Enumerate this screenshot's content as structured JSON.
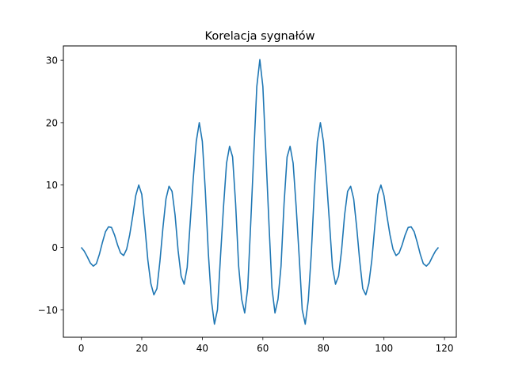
{
  "chart_data": {
    "type": "line",
    "title": "Korelacja sygnałów",
    "xlabel": "",
    "ylabel": "",
    "xlim": [
      -5.9,
      123.9
    ],
    "ylim": [
      -14.4,
      32.3
    ],
    "grid": false,
    "legend": "none",
    "x_ticks": [
      0,
      20,
      40,
      60,
      80,
      100,
      120
    ],
    "y_ticks": [
      -10,
      0,
      10,
      20,
      30
    ],
    "colors": {
      "line": "#1f77b4",
      "axes": "#000000",
      "background": "#ffffff"
    },
    "series": [
      {
        "x": [
          0,
          1,
          2,
          3,
          4,
          5,
          6,
          7,
          8,
          9,
          10,
          11,
          12,
          13,
          14,
          15,
          16,
          17,
          18,
          19,
          20,
          21,
          22,
          23,
          24,
          25,
          26,
          27,
          28,
          29,
          30,
          31,
          32,
          33,
          34,
          35,
          36,
          37,
          38,
          39,
          40,
          41,
          42,
          43,
          44,
          45,
          46,
          47,
          48,
          49,
          50,
          51,
          52,
          53,
          54,
          55,
          56,
          57,
          58,
          59,
          60,
          61,
          62,
          63,
          64,
          65,
          66,
          67,
          68,
          69,
          70,
          71,
          72,
          73,
          74,
          75,
          76,
          77,
          78,
          79,
          80,
          81,
          82,
          83,
          84,
          85,
          86,
          87,
          88,
          89,
          90,
          91,
          92,
          93,
          94,
          95,
          96,
          97,
          98,
          99,
          100,
          101,
          102,
          103,
          104,
          105,
          106,
          107,
          108,
          109,
          110,
          111,
          112,
          113,
          114,
          115,
          116,
          117,
          118
        ],
        "values": [
          0.0,
          -0.6,
          -1.5,
          -2.5,
          -3.0,
          -2.6,
          -1.1,
          0.8,
          2.5,
          3.3,
          3.2,
          2.0,
          0.4,
          -0.9,
          -1.3,
          -0.3,
          2.0,
          5.0,
          8.3,
          10.0,
          8.5,
          3.5,
          -2.0,
          -5.8,
          -7.6,
          -6.6,
          -2.2,
          3.2,
          7.8,
          9.8,
          9.0,
          5.2,
          -0.5,
          -4.6,
          -5.9,
          -3.2,
          4.0,
          11.0,
          17.0,
          20.0,
          17.0,
          9.0,
          -1.0,
          -8.5,
          -12.3,
          -10.0,
          -1.5,
          6.5,
          13.5,
          16.2,
          14.5,
          7.0,
          -3.0,
          -8.3,
          -10.5,
          -6.5,
          4.0,
          15.0,
          25.8,
          30.1,
          25.8,
          15.0,
          4.0,
          -6.5,
          -10.5,
          -8.3,
          -3.0,
          7.0,
          14.5,
          16.2,
          13.5,
          6.5,
          -1.5,
          -10.0,
          -12.3,
          -8.5,
          -1.0,
          9.0,
          17.0,
          20.0,
          17.0,
          11.0,
          4.0,
          -3.2,
          -5.9,
          -4.6,
          -0.5,
          5.2,
          9.0,
          9.8,
          7.8,
          3.2,
          -2.2,
          -6.6,
          -7.6,
          -5.8,
          -2.0,
          3.5,
          8.5,
          10.0,
          8.3,
          5.0,
          2.0,
          -0.3,
          -1.3,
          -0.9,
          0.4,
          2.0,
          3.2,
          3.3,
          2.5,
          0.8,
          -1.1,
          -2.6,
          -3.0,
          -2.5,
          -1.5,
          -0.6,
          0.0
        ]
      }
    ]
  }
}
